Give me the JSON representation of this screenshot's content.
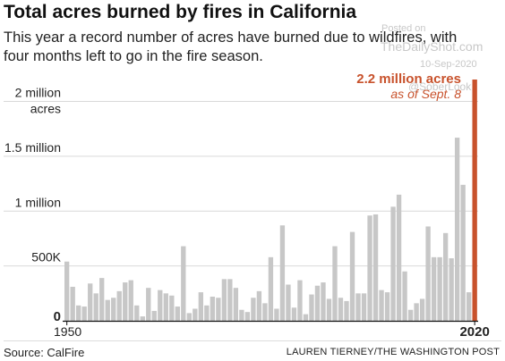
{
  "header": {
    "title": "Total acres burned by fires in California",
    "subtitle": "This year a record number of acres have burned due to wildfires, with four months left to go in the fire season."
  },
  "watermark": {
    "posted": "Posted on",
    "site": "TheDailyShot.com",
    "date": "10-Sep-2020",
    "tag": "@SoberLook"
  },
  "footer": {
    "source": "Source: CalFire",
    "credit": "LAUREN TIERNEY/THE WASHINGTON POST"
  },
  "colors": {
    "bar": "#c7c7c7",
    "highlight": "#c8522c",
    "axis": "#111111",
    "grid": "#d9d9d9"
  },
  "chart_data": {
    "type": "bar",
    "ylim": [
      0,
      2200000
    ],
    "y_ticks": [
      {
        "value": 0,
        "label": "0"
      },
      {
        "value": 500000,
        "label": "500K"
      },
      {
        "value": 1000000,
        "label": "1 million"
      },
      {
        "value": 1500000,
        "label": "1.5 million"
      },
      {
        "value": 2000000,
        "label": "2 million",
        "label2": "acres"
      }
    ],
    "x_tick_labels": [
      {
        "year": 1950,
        "label": "1950"
      },
      {
        "year": 2020,
        "label": "2020"
      }
    ],
    "years": [
      1950,
      1951,
      1952,
      1953,
      1954,
      1955,
      1956,
      1957,
      1958,
      1959,
      1960,
      1961,
      1962,
      1963,
      1964,
      1965,
      1966,
      1967,
      1968,
      1969,
      1970,
      1971,
      1972,
      1973,
      1974,
      1975,
      1976,
      1977,
      1978,
      1979,
      1980,
      1981,
      1982,
      1983,
      1984,
      1985,
      1986,
      1987,
      1988,
      1989,
      1990,
      1991,
      1992,
      1993,
      1994,
      1995,
      1996,
      1997,
      1998,
      1999,
      2000,
      2001,
      2002,
      2003,
      2004,
      2005,
      2006,
      2007,
      2008,
      2009,
      2010,
      2011,
      2012,
      2013,
      2014,
      2015,
      2016,
      2017,
      2018,
      2019,
      2020
    ],
    "values": [
      540000,
      310000,
      140000,
      130000,
      340000,
      250000,
      390000,
      190000,
      210000,
      270000,
      350000,
      370000,
      140000,
      40000,
      300000,
      90000,
      280000,
      250000,
      230000,
      130000,
      680000,
      70000,
      110000,
      260000,
      140000,
      220000,
      210000,
      380000,
      380000,
      300000,
      100000,
      80000,
      210000,
      270000,
      160000,
      580000,
      110000,
      870000,
      330000,
      120000,
      370000,
      60000,
      240000,
      320000,
      350000,
      200000,
      680000,
      210000,
      180000,
      810000,
      250000,
      250000,
      960000,
      970000,
      280000,
      260000,
      1040000,
      1150000,
      450000,
      100000,
      160000,
      200000,
      860000,
      580000,
      580000,
      800000,
      570000,
      1670000,
      1240000,
      260000,
      2200000
    ],
    "highlight_year": 2020,
    "annotation": {
      "value_label": "2.2 million acres",
      "date_label": "as of Sept. 8"
    }
  }
}
